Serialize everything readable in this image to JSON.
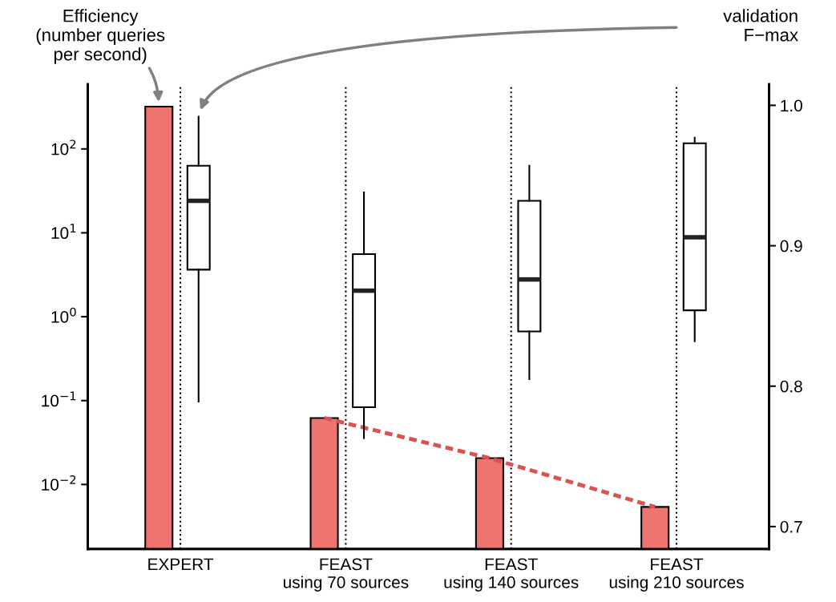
{
  "chart_data": {
    "type": "bar",
    "categories": [
      "EXPERT",
      "FEAST\nusing 70 sources",
      "FEAST\nusing 140 sources",
      "FEAST\nusing 210 sources"
    ],
    "series": [
      {
        "color": "#ee7470",
        "values": [
          320,
          0.062,
          0.0206,
          0.0054
        ]
      },
      {
        "type": "line",
        "color": "#d9534f",
        "line_style": "dashed",
        "values": [
          null,
          0.062,
          0.0206,
          0.0054
        ]
      },
      {
        "type": "box",
        "axis": "y2",
        "boxes": [
          {
            "low": 0.789,
            "q1": 0.883,
            "median": 0.932,
            "q3": 0.957,
            "high": 0.992
          },
          {
            "low": 0.763,
            "q1": 0.785,
            "median": 0.868,
            "q3": 0.894,
            "high": 0.938
          },
          {
            "low": 0.805,
            "q1": 0.839,
            "median": 0.876,
            "q3": 0.932,
            "high": 0.957
          },
          {
            "low": 0.832,
            "q1": 0.854,
            "median": 0.906,
            "q3": 0.973,
            "high": 0.977
          }
        ]
      }
    ],
    "log": "y",
    "ylim": [
      0.0017,
      590
    ],
    "yticks": [
      {
        "value": 0.01,
        "label": "10$^{−2}$"
      },
      {
        "value": 0.1,
        "label": "10$^{−1}$"
      },
      {
        "value": 1,
        "label": "10$^{0}$"
      },
      {
        "value": 10,
        "label": "10$^{1}$"
      },
      {
        "value": 100,
        "label": "10$^{2}$"
      }
    ],
    "y2lim": [
      0.684,
      1.015
    ],
    "y2ticks": [
      0.7,
      0.8,
      0.9,
      {
        "value": 1,
        "label": "1.0"
      }
    ],
    "ref_lines": [
      {
        "axis": "x",
        "value": "EXPERT",
        "line_style": "dotted",
        "color": "#000000"
      },
      {
        "axis": "x",
        "value": "FEAST\nusing 70 sources",
        "line_style": "dotted",
        "color": "#000000"
      },
      {
        "axis": "x",
        "value": "FEAST\nusing 140 sources",
        "line_style": "dotted",
        "color": "#000000"
      },
      {
        "axis": "x",
        "value": "FEAST\nusing 210 sources",
        "line_style": "dotted",
        "color": "#000000"
      }
    ],
    "annotations": [
      "Efficiency\n(number queries\nper second)",
      "validation\nF−max"
    ],
    "grid": false
  }
}
